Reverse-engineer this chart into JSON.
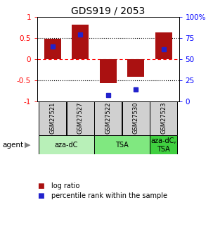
{
  "title": "GDS919 / 2053",
  "samples": [
    "GSM27521",
    "GSM27527",
    "GSM27522",
    "GSM27530",
    "GSM27523"
  ],
  "log_ratios": [
    0.48,
    0.82,
    -0.57,
    -0.42,
    0.63
  ],
  "percentile_ranks": [
    65,
    79,
    8,
    14,
    62
  ],
  "agents": [
    {
      "label": "aza-dC",
      "samples": [
        0,
        1
      ],
      "color": "#b8f0b8"
    },
    {
      "label": "TSA",
      "samples": [
        2,
        3
      ],
      "color": "#80e880"
    },
    {
      "label": "aza-dC,\nTSA",
      "samples": [
        4,
        4
      ],
      "color": "#40d040"
    }
  ],
  "bar_color": "#aa1111",
  "dot_color": "#2222cc",
  "sample_box_color": "#d0d0d0",
  "ylim_left": [
    -1.0,
    1.0
  ],
  "ylim_right": [
    0,
    100
  ],
  "yticks_left": [
    -1,
    -0.5,
    0,
    0.5,
    1
  ],
  "ytick_labels_left": [
    "-1",
    "-0.5",
    "0",
    "0.5",
    "1"
  ],
  "yticks_right": [
    0,
    25,
    50,
    75,
    100
  ],
  "ytick_labels_right": [
    "0",
    "25",
    "50",
    "75",
    "100%"
  ],
  "hlines": [
    -0.5,
    0,
    0.5
  ],
  "hline_styles": [
    "dotted",
    "dashed",
    "dotted"
  ],
  "background_color": "#ffffff"
}
